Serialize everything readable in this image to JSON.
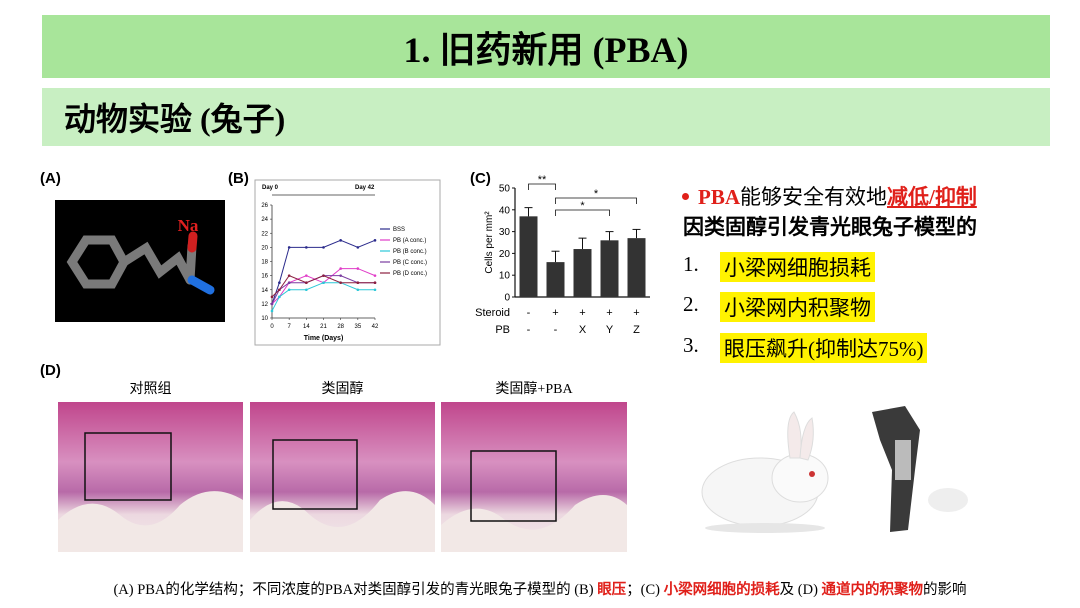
{
  "header": {
    "title": "1. 旧药新用 (PBA)",
    "subtitle": "动物实验 (兔子)"
  },
  "panels": {
    "a": "(A)",
    "b": "(B)",
    "c": "(C)",
    "d": "(D)",
    "molecule_label": "Na"
  },
  "histology": {
    "captions": [
      "对照组",
      "类固醇",
      "类固醇+PBA"
    ]
  },
  "right": {
    "intro": [
      "PBA",
      "能够安全有效地",
      "减低/抑制"
    ],
    "line2": "因类固醇引发青光眼兔子模型的",
    "items": [
      {
        "number": "1.",
        "text": "小梁网细胞损耗"
      },
      {
        "number": "2.",
        "text": "小梁网内积聚物"
      },
      {
        "number": "3.",
        "text": "眼压飙升(抑制达75%)"
      }
    ]
  },
  "caption": [
    "(A) PBA的化学结构；不同浓度的PBA对类固醇引发的青光眼兔子模型的 (B) ",
    "眼压",
    "；(C) ",
    "小梁网细胞的损耗",
    "及 (D) ",
    "通道内的积聚物",
    "的影响"
  ],
  "chart_data": [
    {
      "type": "line",
      "xlabel": "Time (Days)",
      "annotations": [
        "Day 0",
        "Day 42"
      ],
      "x": [
        0,
        3,
        7,
        14,
        21,
        28,
        35,
        42
      ],
      "xlim": [
        0,
        42
      ],
      "xticks": [
        0,
        7,
        14,
        21,
        28,
        35,
        42
      ],
      "ylim": [
        10,
        26
      ],
      "yticks": [
        10,
        12,
        14,
        16,
        18,
        20,
        22,
        24,
        26
      ],
      "series": [
        {
          "name": "BSS",
          "color": "#2b2b8c",
          "values": [
            12,
            15,
            20,
            20,
            20,
            21,
            20,
            21
          ]
        },
        {
          "name": "PB (A conc.)",
          "color": "#e03cc8",
          "values": [
            12,
            13,
            15,
            16,
            15,
            17,
            17,
            16
          ]
        },
        {
          "name": "PB (B conc.)",
          "color": "#2cc8d8",
          "values": [
            11,
            13,
            14,
            14,
            15,
            15,
            14,
            14
          ]
        },
        {
          "name": "PB (C conc.)",
          "color": "#7a3ca0",
          "values": [
            12,
            14,
            15,
            15,
            16,
            16,
            15,
            15
          ]
        },
        {
          "name": "PB (D conc.)",
          "color": "#8c2040",
          "values": [
            13,
            14,
            16,
            15,
            16,
            15,
            15,
            15
          ]
        }
      ]
    },
    {
      "type": "bar",
      "ylabel": "Cells per mm²",
      "color": "#333333",
      "values": [
        37,
        16,
        22,
        26,
        27
      ],
      "errors": [
        4,
        5,
        5,
        4,
        4
      ],
      "ylim": [
        0,
        50
      ],
      "yticks": [
        0,
        10,
        20,
        30,
        40,
        50
      ],
      "rows": [
        {
          "name": "Steroid",
          "labels": [
            "-",
            "+",
            "+",
            "+",
            "+"
          ]
        },
        {
          "name": "PB",
          "labels": [
            "-",
            "-",
            "X",
            "Y",
            "Z"
          ]
        }
      ],
      "significance": [
        "**",
        "*",
        "*"
      ]
    }
  ]
}
